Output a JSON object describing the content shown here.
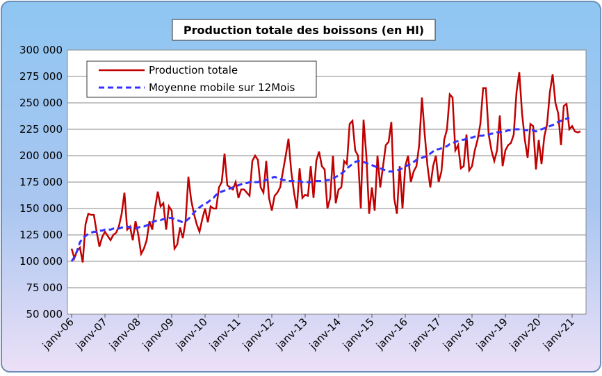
{
  "chart_data": {
    "type": "line",
    "title": "Production totale des boissons (en Hl)",
    "categories": [
      "janv-06",
      null,
      null,
      null,
      null,
      null,
      null,
      null,
      null,
      null,
      null,
      null,
      "janv-07",
      null,
      null,
      null,
      null,
      null,
      null,
      null,
      null,
      null,
      null,
      null,
      "janv-08",
      null,
      null,
      null,
      null,
      null,
      null,
      null,
      null,
      null,
      null,
      null,
      "janv-09",
      null,
      null,
      null,
      null,
      null,
      null,
      null,
      null,
      null,
      null,
      null,
      "janv-10",
      null,
      null,
      null,
      null,
      null,
      null,
      null,
      null,
      null,
      null,
      null,
      "janv-11",
      null,
      null,
      null,
      null,
      null,
      null,
      null,
      null,
      null,
      null,
      null,
      "janv-12",
      null,
      null,
      null,
      null,
      null,
      null,
      null,
      null,
      null,
      null,
      null,
      "janv-13",
      null,
      null,
      null,
      null,
      null,
      null,
      null,
      null,
      null,
      null,
      null,
      "janv-14",
      null,
      null,
      null,
      null,
      null,
      null,
      null,
      null,
      null,
      null,
      null,
      "janv-15",
      null,
      null,
      null,
      null,
      null,
      null,
      null,
      null,
      null,
      null,
      null,
      "janv-16",
      null,
      null,
      null,
      null,
      null,
      null,
      null,
      null,
      null,
      null,
      null,
      "janv-17",
      null,
      null,
      null,
      null,
      null,
      null,
      null,
      null,
      null,
      null,
      null,
      "janv-18",
      null,
      null,
      null,
      null,
      null,
      null,
      null,
      null,
      null,
      null,
      null,
      "janv-19",
      null,
      null,
      null,
      null,
      null,
      null,
      null,
      null,
      null,
      null,
      null,
      "janv-20",
      null,
      null,
      null,
      null,
      null,
      null,
      null,
      null,
      null,
      null,
      null,
      "janv-21",
      null,
      null,
      null
    ],
    "series": [
      {
        "name": "Production totale",
        "color": "#c00000",
        "dashed": false,
        "values": [
          112000,
          103000,
          110000,
          113000,
          99000,
          135000,
          145000,
          144000,
          144000,
          128000,
          114000,
          123000,
          128000,
          124000,
          120000,
          125000,
          127000,
          133000,
          145000,
          165000,
          130000,
          133000,
          120000,
          138000,
          125000,
          107000,
          112000,
          120000,
          138000,
          130000,
          150000,
          166000,
          152000,
          155000,
          130000,
          152000,
          148000,
          112000,
          116000,
          132000,
          122000,
          138000,
          180000,
          158000,
          145000,
          135000,
          128000,
          140000,
          150000,
          137000,
          152000,
          150000,
          150000,
          170000,
          175000,
          202000,
          172000,
          170000,
          168000,
          175000,
          160000,
          168000,
          168000,
          165000,
          162000,
          195000,
          200000,
          196000,
          170000,
          165000,
          195000,
          160000,
          148000,
          162000,
          165000,
          170000,
          185000,
          200000,
          216000,
          185000,
          165000,
          150000,
          188000,
          160000,
          163000,
          162000,
          190000,
          160000,
          195000,
          204000,
          190000,
          187000,
          150000,
          160000,
          200000,
          155000,
          168000,
          170000,
          195000,
          192000,
          230000,
          233000,
          205000,
          200000,
          150000,
          234000,
          200000,
          145000,
          170000,
          148000,
          200000,
          170000,
          190000,
          210000,
          213000,
          232000,
          160000,
          145000,
          190000,
          150000,
          190000,
          200000,
          175000,
          185000,
          190000,
          210000,
          255000,
          220000,
          190000,
          170000,
          190000,
          200000,
          175000,
          185000,
          215000,
          225000,
          258000,
          255000,
          205000,
          210000,
          188000,
          190000,
          220000,
          186000,
          190000,
          205000,
          215000,
          230000,
          264000,
          264000,
          220000,
          205000,
          195000,
          205000,
          238000,
          190000,
          205000,
          210000,
          212000,
          220000,
          260000,
          279000,
          240000,
          215000,
          198000,
          230000,
          228000,
          187000,
          215000,
          192000,
          218000,
          230000,
          260000,
          277000,
          250000,
          240000,
          210000,
          247000,
          249000,
          225000,
          228000,
          223000,
          222000,
          223000
        ]
      },
      {
        "name": "Moyenne mobile sur 12Mois",
        "color": "#3333ff",
        "dashed": true,
        "values": [
          100000,
          104000,
          110000,
          118000,
          122000,
          124000,
          126000,
          127000,
          128000,
          128000,
          129000,
          129000,
          130000,
          130000,
          130000,
          131000,
          131000,
          131000,
          132000,
          132000,
          133000,
          132000,
          132000,
          131000,
          132000,
          133000,
          133000,
          134000,
          135000,
          137000,
          138000,
          139000,
          139000,
          140000,
          140000,
          141000,
          141000,
          140000,
          139000,
          138000,
          137000,
          138000,
          140000,
          143000,
          146000,
          149000,
          151000,
          153000,
          154000,
          156000,
          158000,
          160000,
          163000,
          165000,
          166000,
          167000,
          168000,
          169000,
          170000,
          171000,
          172000,
          173000,
          174000,
          174000,
          175000,
          175000,
          175000,
          175000,
          176000,
          176000,
          177000,
          178000,
          179000,
          180000,
          179000,
          178000,
          177000,
          177000,
          176000,
          176000,
          176000,
          176000,
          176000,
          175000,
          175000,
          175000,
          175000,
          175000,
          176000,
          176000,
          176000,
          176000,
          177000,
          177000,
          178000,
          180000,
          181000,
          183000,
          185000,
          188000,
          190000,
          192000,
          194000,
          195000,
          195000,
          194000,
          193000,
          192000,
          191000,
          190000,
          189000,
          188000,
          187000,
          186000,
          185000,
          185000,
          185000,
          186000,
          187000,
          188000,
          190000,
          191000,
          192000,
          194000,
          196000,
          197000,
          198000,
          199000,
          200000,
          202000,
          204000,
          206000,
          206000,
          207000,
          208000,
          209000,
          211000,
          212000,
          213000,
          214000,
          215000,
          215000,
          216000,
          217000,
          217000,
          218000,
          218000,
          219000,
          219000,
          220000,
          220000,
          221000,
          221000,
          222000,
          222000,
          223000,
          223000,
          224000,
          224000,
          225000,
          225000,
          225000,
          225000,
          224000,
          224000,
          224000,
          224000,
          223000,
          224000,
          225000,
          226000,
          227000,
          228000,
          229000,
          230000,
          232000,
          233000,
          234000,
          235000,
          236000,
          null,
          null,
          null,
          null
        ]
      }
    ],
    "ylim": [
      50000,
      300000
    ],
    "yticks": [
      {
        "value": 50000,
        "label": "50 000"
      },
      {
        "value": 75000,
        "label": "75 000"
      },
      {
        "value": 100000,
        "label": "100 000"
      },
      {
        "value": 125000,
        "label": "125 000"
      },
      {
        "value": 150000,
        "label": "150 000"
      },
      {
        "value": 175000,
        "label": "175 000"
      },
      {
        "value": 200000,
        "label": "200 000"
      },
      {
        "value": 225000,
        "label": "225 000"
      },
      {
        "value": 250000,
        "label": "250 000"
      },
      {
        "value": 275000,
        "label": "275 000"
      },
      {
        "value": 300000,
        "label": "300 000"
      }
    ],
    "grid": true,
    "legend": "upper left"
  }
}
